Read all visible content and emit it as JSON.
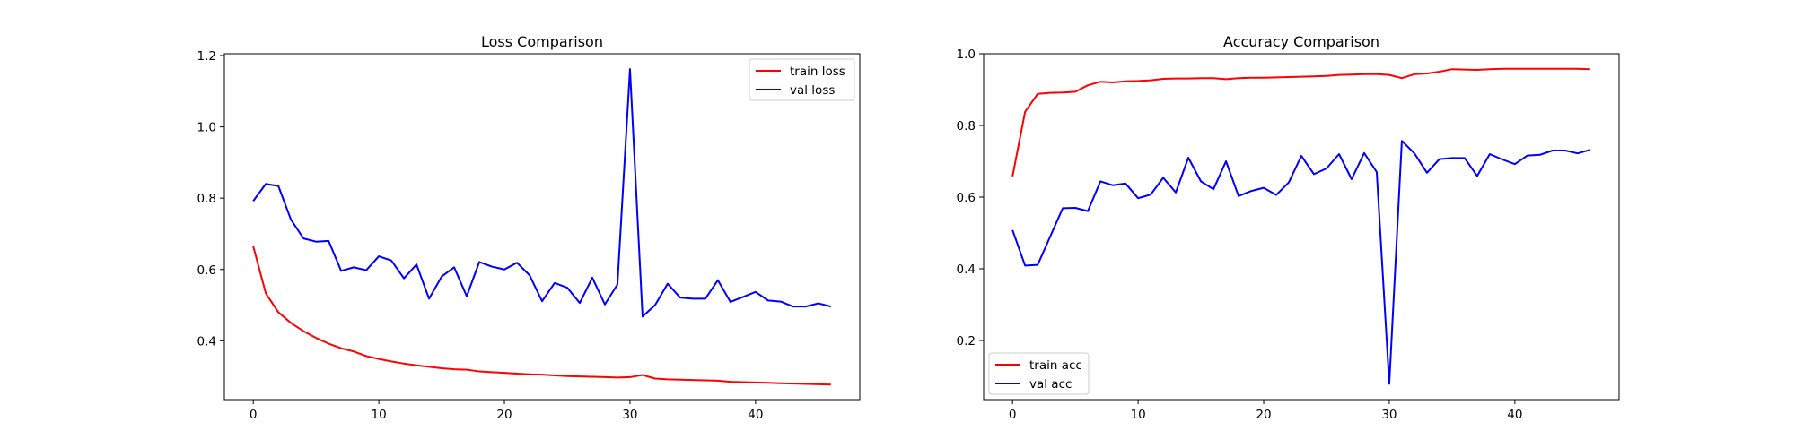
{
  "chart_data": [
    {
      "type": "line",
      "title": "Loss Comparison",
      "xlabel": "",
      "ylabel": "",
      "xlim": [
        -2.3,
        48.3
      ],
      "ylim": [
        0.235,
        1.205
      ],
      "xticks": [
        0,
        10,
        20,
        30,
        40
      ],
      "yticks": [
        0.4,
        0.6,
        0.8,
        1.0,
        1.2
      ],
      "xtick_labels": [
        "0",
        "10",
        "20",
        "30",
        "40"
      ],
      "ytick_labels": [
        "0.4",
        "0.6",
        "0.8",
        "1.0",
        "1.2"
      ],
      "grid": false,
      "legend_position": "upper right",
      "x": [
        0,
        1,
        2,
        3,
        4,
        5,
        6,
        7,
        8,
        9,
        10,
        11,
        12,
        13,
        14,
        15,
        16,
        17,
        18,
        19,
        20,
        21,
        22,
        23,
        24,
        25,
        26,
        27,
        28,
        29,
        30,
        31,
        32,
        33,
        34,
        35,
        36,
        37,
        38,
        39,
        40,
        41,
        42,
        43,
        44,
        45,
        46
      ],
      "series": [
        {
          "name": "train loss",
          "color": "#ff0000",
          "values": [
            0.665,
            0.533,
            0.48,
            0.45,
            0.427,
            0.408,
            0.392,
            0.379,
            0.37,
            0.357,
            0.349,
            0.342,
            0.336,
            0.331,
            0.327,
            0.323,
            0.32,
            0.319,
            0.314,
            0.312,
            0.31,
            0.308,
            0.306,
            0.305,
            0.303,
            0.301,
            0.3,
            0.299,
            0.298,
            0.297,
            0.298,
            0.304,
            0.294,
            0.292,
            0.291,
            0.29,
            0.289,
            0.288,
            0.285,
            0.284,
            0.283,
            0.282,
            0.281,
            0.28,
            0.279,
            0.278,
            0.277
          ]
        },
        {
          "name": "val loss",
          "color": "#0000ff",
          "values": [
            0.792,
            0.84,
            0.834,
            0.74,
            0.687,
            0.678,
            0.68,
            0.596,
            0.606,
            0.598,
            0.637,
            0.625,
            0.575,
            0.614,
            0.518,
            0.58,
            0.606,
            0.525,
            0.621,
            0.608,
            0.6,
            0.619,
            0.584,
            0.511,
            0.562,
            0.549,
            0.506,
            0.577,
            0.502,
            0.558,
            1.162,
            0.468,
            0.5,
            0.56,
            0.521,
            0.518,
            0.518,
            0.57,
            0.509,
            0.523,
            0.537,
            0.513,
            0.51,
            0.496,
            0.496,
            0.505,
            0.496
          ]
        }
      ]
    },
    {
      "type": "line",
      "title": "Accuracy Comparison",
      "xlabel": "",
      "ylabel": "",
      "xlim": [
        -2.3,
        48.3
      ],
      "ylim": [
        0.035,
        1.0
      ],
      "xticks": [
        0,
        10,
        20,
        30,
        40
      ],
      "yticks": [
        0.2,
        0.4,
        0.6,
        0.8,
        1.0
      ],
      "xtick_labels": [
        "0",
        "10",
        "20",
        "30",
        "40"
      ],
      "ytick_labels": [
        "0.2",
        "0.4",
        "0.6",
        "0.8",
        "1.0"
      ],
      "grid": false,
      "legend_position": "lower left",
      "x": [
        0,
        1,
        2,
        3,
        4,
        5,
        6,
        7,
        8,
        9,
        10,
        11,
        12,
        13,
        14,
        15,
        16,
        17,
        18,
        19,
        20,
        21,
        22,
        23,
        24,
        25,
        26,
        27,
        28,
        29,
        30,
        31,
        32,
        33,
        34,
        35,
        36,
        37,
        38,
        39,
        40,
        41,
        42,
        43,
        44,
        45,
        46
      ],
      "series": [
        {
          "name": "train acc",
          "color": "#ff0000",
          "values": [
            0.658,
            0.838,
            0.888,
            0.891,
            0.892,
            0.894,
            0.912,
            0.922,
            0.92,
            0.923,
            0.924,
            0.926,
            0.93,
            0.931,
            0.931,
            0.932,
            0.932,
            0.929,
            0.932,
            0.933,
            0.933,
            0.934,
            0.935,
            0.936,
            0.937,
            0.938,
            0.941,
            0.942,
            0.943,
            0.943,
            0.941,
            0.932,
            0.943,
            0.945,
            0.95,
            0.957,
            0.956,
            0.955,
            0.957,
            0.958,
            0.958,
            0.958,
            0.958,
            0.958,
            0.958,
            0.958,
            0.957
          ]
        },
        {
          "name": "val acc",
          "color": "#0000ff",
          "values": [
            0.508,
            0.409,
            0.411,
            0.49,
            0.569,
            0.57,
            0.561,
            0.644,
            0.633,
            0.638,
            0.597,
            0.607,
            0.654,
            0.613,
            0.71,
            0.644,
            0.622,
            0.7,
            0.603,
            0.617,
            0.626,
            0.606,
            0.641,
            0.715,
            0.664,
            0.68,
            0.72,
            0.65,
            0.723,
            0.67,
            0.079,
            0.757,
            0.722,
            0.668,
            0.706,
            0.709,
            0.709,
            0.659,
            0.72,
            0.705,
            0.692,
            0.716,
            0.718,
            0.73,
            0.73,
            0.722,
            0.732
          ]
        }
      ]
    }
  ]
}
